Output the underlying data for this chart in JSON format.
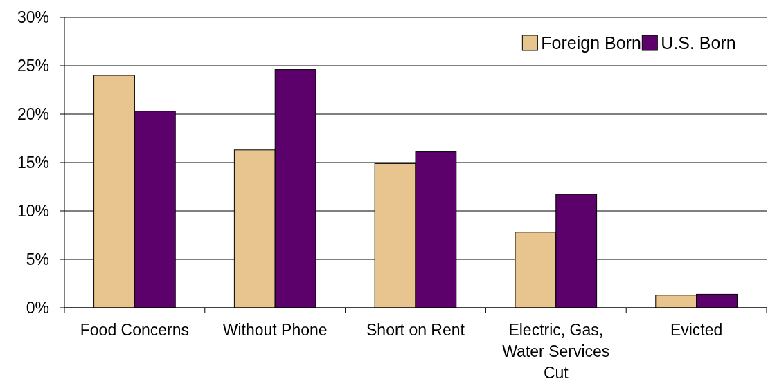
{
  "chart_data": {
    "type": "bar",
    "categories": [
      "Food Concerns",
      "Without Phone",
      "Short on Rent",
      "Electric, Gas, Water Services Cut",
      "Evicted"
    ],
    "series": [
      {
        "name": "Foreign Born",
        "color": "#e8c48f",
        "values": [
          24.0,
          16.3,
          14.9,
          7.8,
          1.3
        ]
      },
      {
        "name": "U.S. Born",
        "color": "#5c006b",
        "values": [
          20.3,
          24.6,
          16.1,
          11.7,
          1.4
        ]
      }
    ],
    "ylim": [
      0,
      30
    ],
    "yticks": [
      {
        "value": 0,
        "label": "0%"
      },
      {
        "value": 5,
        "label": "5%"
      },
      {
        "value": 10,
        "label": "10%"
      },
      {
        "value": 15,
        "label": "15%"
      },
      {
        "value": 20,
        "label": "20%"
      },
      {
        "value": 25,
        "label": "25%"
      },
      {
        "value": 30,
        "label": "30%"
      }
    ],
    "grid": "y",
    "legend": "top right"
  }
}
